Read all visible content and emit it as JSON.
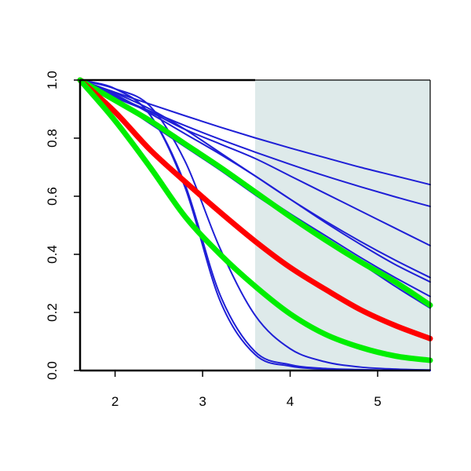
{
  "chart_data": {
    "type": "line",
    "title": "",
    "xlabel": "",
    "ylabel": "",
    "xlim": [
      1.6,
      5.6
    ],
    "ylim": [
      0.0,
      1.0
    ],
    "x_ticks": [
      2,
      3,
      4,
      5
    ],
    "x_tick_labels": [
      "2",
      "3",
      "4",
      "5"
    ],
    "y_ticks": [
      0.0,
      0.2,
      0.4,
      0.6,
      0.8,
      1.0
    ],
    "y_tick_labels": [
      "0.0",
      "0.2",
      "0.4",
      "0.6",
      "0.8",
      "1.0"
    ],
    "grid": false,
    "legend": "none",
    "shaded_x_range": [
      3.6,
      5.6
    ],
    "shaded_color": "#deeaea",
    "x_sample": [
      1.6,
      2.0,
      2.4,
      2.8,
      3.2,
      3.6,
      4.0,
      4.4,
      4.8,
      5.2,
      5.6
    ],
    "series": [
      {
        "color": "#1f1fd6",
        "width": 2,
        "values": [
          1.0,
          0.958,
          0.917,
          0.877,
          0.838,
          0.801,
          0.766,
          0.733,
          0.7,
          0.67,
          0.64
        ]
      },
      {
        "color": "#1f1fd6",
        "width": 2,
        "values": [
          1.0,
          0.945,
          0.893,
          0.843,
          0.796,
          0.752,
          0.71,
          0.67,
          0.633,
          0.598,
          0.565
        ]
      },
      {
        "color": "#1f1fd6",
        "width": 2,
        "values": [
          1.0,
          0.94,
          0.89,
          0.83,
          0.78,
          0.73,
          0.67,
          0.61,
          0.55,
          0.49,
          0.43
        ]
      },
      {
        "color": "#1f1fd6",
        "width": 2,
        "values": [
          1.0,
          0.955,
          0.9,
          0.83,
          0.75,
          0.67,
          0.59,
          0.515,
          0.445,
          0.38,
          0.32
        ]
      },
      {
        "color": "#1f1fd6",
        "width": 2,
        "values": [
          1.0,
          0.95,
          0.885,
          0.815,
          0.745,
          0.67,
          0.59,
          0.51,
          0.435,
          0.365,
          0.305
        ]
      },
      {
        "color": "#1f1fd6",
        "width": 2,
        "values": [
          1.0,
          0.93,
          0.855,
          0.78,
          0.7,
          0.62,
          0.54,
          0.465,
          0.39,
          0.32,
          0.255
        ]
      },
      {
        "color": "#1f1fd6",
        "width": 2,
        "values": [
          1.0,
          0.93,
          0.85,
          0.77,
          0.69,
          0.605,
          0.525,
          0.445,
          0.37,
          0.29,
          0.215
        ]
      },
      {
        "color": "#1f1fd6",
        "width": 2,
        "values": [
          1.0,
          0.97,
          0.88,
          0.63,
          0.24,
          0.055,
          0.015,
          0.005,
          0.002,
          0.001,
          0.0
        ]
      },
      {
        "color": "#1f1fd6",
        "width": 2,
        "values": [
          1.0,
          0.97,
          0.88,
          0.64,
          0.26,
          0.065,
          0.02,
          0.007,
          0.003,
          0.001,
          0.0
        ]
      },
      {
        "color": "#1f1fd6",
        "width": 2,
        "values": [
          1.0,
          0.97,
          0.91,
          0.72,
          0.42,
          0.19,
          0.075,
          0.03,
          0.012,
          0.005,
          0.002
        ]
      },
      {
        "color": "#00ee00",
        "width": 7,
        "values": [
          1.0,
          0.93,
          0.86,
          0.78,
          0.7,
          0.615,
          0.53,
          0.45,
          0.375,
          0.305,
          0.225
        ]
      },
      {
        "color": "#ff0000",
        "width": 7,
        "values": [
          1.0,
          0.89,
          0.76,
          0.65,
          0.545,
          0.445,
          0.355,
          0.28,
          0.21,
          0.155,
          0.11
        ]
      },
      {
        "color": "#00ee00",
        "width": 7,
        "values": [
          1.0,
          0.86,
          0.7,
          0.53,
          0.4,
          0.29,
          0.195,
          0.125,
          0.08,
          0.05,
          0.035
        ]
      }
    ]
  }
}
